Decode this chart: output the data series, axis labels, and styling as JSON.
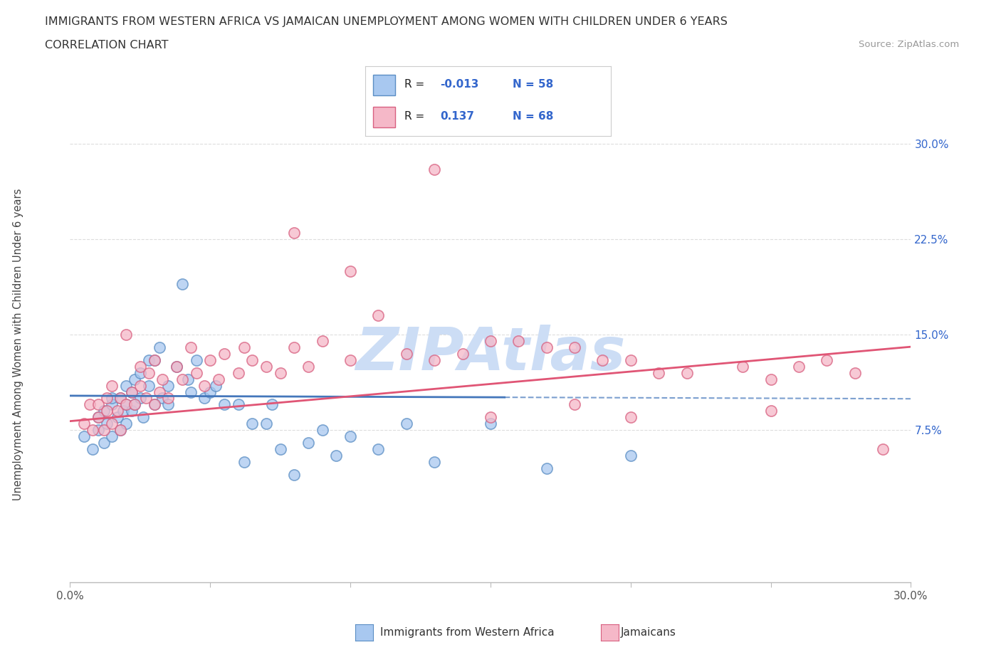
{
  "title_line1": "IMMIGRANTS FROM WESTERN AFRICA VS JAMAICAN UNEMPLOYMENT AMONG WOMEN WITH CHILDREN UNDER 6 YEARS",
  "title_line2": "CORRELATION CHART",
  "source": "Source: ZipAtlas.com",
  "ylabel": "Unemployment Among Women with Children Under 6 years",
  "xlim": [
    0.0,
    0.3
  ],
  "ylim": [
    -0.045,
    0.33
  ],
  "yticks_right": [
    0.075,
    0.15,
    0.225,
    0.3
  ],
  "ytick_right_labels": [
    "7.5%",
    "15.0%",
    "22.5%",
    "30.0%"
  ],
  "r_blue": -0.013,
  "n_blue": 58,
  "r_pink": 0.137,
  "n_pink": 68,
  "blue_color": "#a8c8f0",
  "pink_color": "#f5b8c8",
  "blue_edge_color": "#5b8ec4",
  "pink_edge_color": "#d86080",
  "blue_line_color": "#4477bb",
  "pink_line_color": "#e05575",
  "legend_r_color": "#3366cc",
  "watermark": "ZIPAtlas",
  "watermark_color": "#ccddf5",
  "background_color": "#ffffff",
  "grid_color": "#dddddd",
  "blue_intercept": 0.102,
  "blue_slope": -0.008,
  "pink_intercept": 0.082,
  "pink_slope": 0.195,
  "blue_scatter_x": [
    0.005,
    0.008,
    0.01,
    0.01,
    0.012,
    0.012,
    0.013,
    0.015,
    0.015,
    0.015,
    0.017,
    0.018,
    0.018,
    0.019,
    0.02,
    0.02,
    0.02,
    0.022,
    0.022,
    0.023,
    0.023,
    0.025,
    0.025,
    0.026,
    0.028,
    0.028,
    0.03,
    0.03,
    0.032,
    0.033,
    0.035,
    0.035,
    0.038,
    0.04,
    0.042,
    0.043,
    0.045,
    0.048,
    0.05,
    0.052,
    0.055,
    0.06,
    0.062,
    0.065,
    0.07,
    0.072,
    0.075,
    0.08,
    0.085,
    0.09,
    0.095,
    0.1,
    0.11,
    0.12,
    0.13,
    0.15,
    0.17,
    0.2
  ],
  "blue_scatter_y": [
    0.07,
    0.06,
    0.075,
    0.085,
    0.065,
    0.09,
    0.08,
    0.095,
    0.1,
    0.07,
    0.085,
    0.075,
    0.1,
    0.09,
    0.095,
    0.11,
    0.08,
    0.105,
    0.09,
    0.115,
    0.095,
    0.1,
    0.12,
    0.085,
    0.13,
    0.11,
    0.095,
    0.13,
    0.14,
    0.1,
    0.11,
    0.095,
    0.125,
    0.19,
    0.115,
    0.105,
    0.13,
    0.1,
    0.105,
    0.11,
    0.095,
    0.095,
    0.05,
    0.08,
    0.08,
    0.095,
    0.06,
    0.04,
    0.065,
    0.075,
    0.055,
    0.07,
    0.06,
    0.08,
    0.05,
    0.08,
    0.045,
    0.055
  ],
  "pink_scatter_x": [
    0.005,
    0.007,
    0.008,
    0.01,
    0.01,
    0.012,
    0.013,
    0.013,
    0.015,
    0.015,
    0.017,
    0.018,
    0.018,
    0.02,
    0.02,
    0.022,
    0.023,
    0.025,
    0.025,
    0.027,
    0.028,
    0.03,
    0.03,
    0.032,
    0.033,
    0.035,
    0.038,
    0.04,
    0.043,
    0.045,
    0.048,
    0.05,
    0.053,
    0.055,
    0.06,
    0.062,
    0.065,
    0.07,
    0.075,
    0.08,
    0.085,
    0.09,
    0.1,
    0.11,
    0.12,
    0.13,
    0.14,
    0.15,
    0.16,
    0.17,
    0.18,
    0.19,
    0.2,
    0.21,
    0.22,
    0.24,
    0.25,
    0.26,
    0.27,
    0.28,
    0.29,
    0.1,
    0.15,
    0.2,
    0.25,
    0.13,
    0.08,
    0.18
  ],
  "pink_scatter_y": [
    0.08,
    0.095,
    0.075,
    0.085,
    0.095,
    0.075,
    0.1,
    0.09,
    0.11,
    0.08,
    0.09,
    0.1,
    0.075,
    0.095,
    0.15,
    0.105,
    0.095,
    0.11,
    0.125,
    0.1,
    0.12,
    0.095,
    0.13,
    0.105,
    0.115,
    0.1,
    0.125,
    0.115,
    0.14,
    0.12,
    0.11,
    0.13,
    0.115,
    0.135,
    0.12,
    0.14,
    0.13,
    0.125,
    0.12,
    0.14,
    0.125,
    0.145,
    0.2,
    0.165,
    0.135,
    0.13,
    0.135,
    0.145,
    0.145,
    0.14,
    0.14,
    0.13,
    0.13,
    0.12,
    0.12,
    0.125,
    0.115,
    0.125,
    0.13,
    0.12,
    0.06,
    0.13,
    0.085,
    0.085,
    0.09,
    0.28,
    0.23,
    0.095
  ]
}
